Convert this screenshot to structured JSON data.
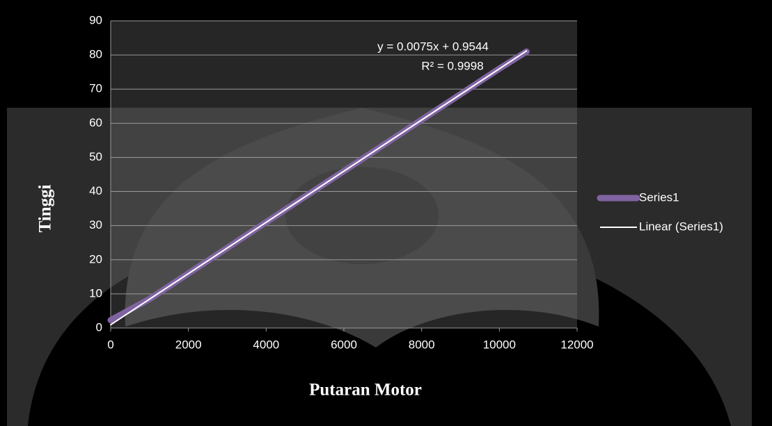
{
  "chart_data": {
    "type": "scatter",
    "xlabel": "Putaran Motor",
    "ylabel": "Tinggi",
    "xlim": [
      0,
      12000
    ],
    "ylim": [
      0,
      90
    ],
    "xticks": [
      0,
      2000,
      4000,
      6000,
      8000,
      10000,
      12000
    ],
    "yticks": [
      0,
      10,
      20,
      30,
      40,
      50,
      60,
      70,
      80,
      90
    ],
    "grid": true,
    "legend": "right",
    "series": [
      {
        "name": "Series1",
        "color": "#8064a2",
        "x": [
          0,
          1000,
          2000,
          3000,
          4000,
          5000,
          6000,
          7000,
          8000,
          9000,
          10000,
          10700
        ],
        "values": [
          2.3,
          8.5,
          16,
          23.5,
          31,
          38.5,
          46,
          53.5,
          61,
          68.5,
          76,
          81
        ]
      },
      {
        "name": "Linear (Series1)",
        "color": "#ffffff",
        "x": [
          0,
          10700
        ],
        "values": [
          0.9544,
          81.2044
        ]
      }
    ],
    "annotations": [
      "y = 0.0075x + 0.9544",
      "R² = 0.9998"
    ]
  }
}
